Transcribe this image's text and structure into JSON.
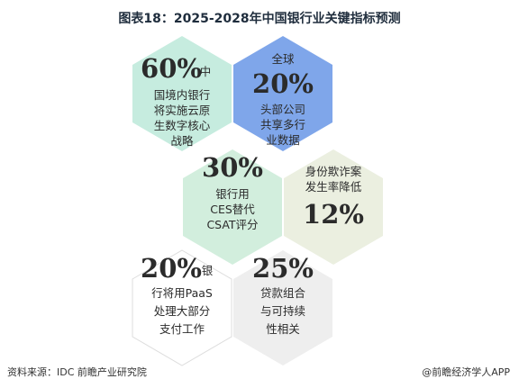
{
  "title": "图表18：2025-2028年中国银行业关键指标预测",
  "hexes": [
    {
      "id": "cloud-native",
      "color": "#c6ecdf",
      "figure": "60%",
      "lines": [
        "国境内银行",
        "将实施云原",
        "生数字核心",
        "战略"
      ],
      "figure_suffix": "中"
    },
    {
      "id": "shared-data",
      "color": "#7fa6ea",
      "figure_prefix": "全球",
      "figure": "20%",
      "lines": [
        "头部公司",
        "共享多行",
        "业数据"
      ]
    },
    {
      "id": "ces-csat",
      "color": "#d2eedd",
      "figure": "30%",
      "lines": [
        "银行用",
        "CES替代",
        "CSAT评分"
      ]
    },
    {
      "id": "fraud",
      "color": "#ebefe0",
      "figure": "12%",
      "lines": [
        "身份欺诈案",
        "发生率降低"
      ]
    },
    {
      "id": "paas",
      "color": "#ffffff",
      "figure": "20%",
      "figure_suffix": "银",
      "lines": [
        "行将用PaaS",
        "处理大部分",
        "支付工作"
      ]
    },
    {
      "id": "loan-portfolio",
      "color": "#eeeeee",
      "figure": "25%",
      "lines": [
        "贷款组合",
        "与可持续",
        "性相关"
      ]
    }
  ],
  "footer": {
    "source": "资料来源：IDC 前瞻产业研究院",
    "brand": "@前瞻经济学人APP"
  }
}
